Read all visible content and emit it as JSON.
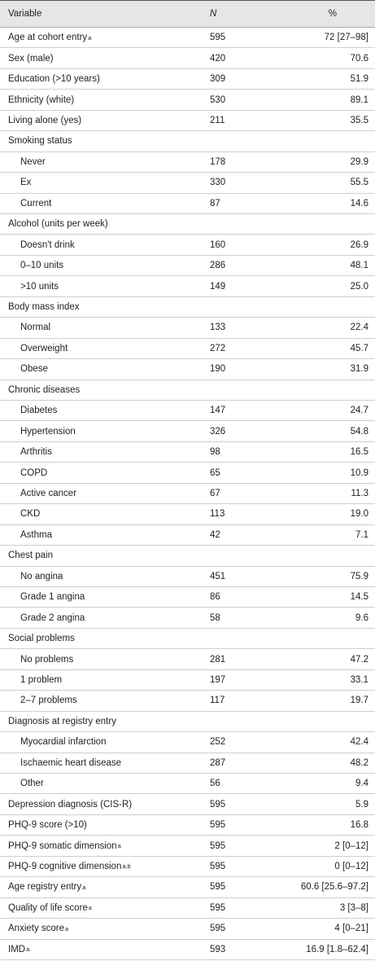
{
  "table": {
    "header": [
      "Variable",
      "N",
      "%"
    ],
    "rows": [
      {
        "label": "Age at cohort entry",
        "sup": "a",
        "n": 595,
        "pct": "72 [27–98]"
      },
      {
        "label": "Sex (male)",
        "n": 420,
        "pct": "70.6"
      },
      {
        "label": "Education (>10 years)",
        "n": 309,
        "pct": "51.9"
      },
      {
        "label": "Ethnicity (white)",
        "n": 530,
        "pct": "89.1"
      },
      {
        "label": "Living alone (yes)",
        "n": 211,
        "pct": "35.5"
      },
      {
        "label": "Smoking status",
        "items": [
          {
            "label": "Never",
            "n": 178,
            "pct": "29.9"
          },
          {
            "label": "Ex",
            "n": 330,
            "pct": "55.5"
          },
          {
            "label": "Current",
            "n": 87,
            "pct": "14.6"
          }
        ]
      },
      {
        "label": "Alcohol (units per week)",
        "items": [
          {
            "label": "Doesn't drink",
            "n": 160,
            "pct": "26.9"
          },
          {
            "label": "0–10 units",
            "n": 286,
            "pct": "48.1"
          },
          {
            "label": ">10 units",
            "n": 149,
            "pct": "25.0"
          }
        ]
      },
      {
        "label": "Body mass index",
        "items": [
          {
            "label": "Normal",
            "n": 133,
            "pct": "22.4"
          },
          {
            "label": "Overweight",
            "n": 272,
            "pct": "45.7"
          },
          {
            "label": "Obese",
            "n": 190,
            "pct": "31.9"
          }
        ]
      },
      {
        "label": "Chronic diseases",
        "items": [
          {
            "label": "Diabetes",
            "n": 147,
            "pct": "24.7"
          },
          {
            "label": "Hypertension",
            "n": 326,
            "pct": "54.8"
          },
          {
            "label": "Arthritis",
            "n": 98,
            "pct": "16.5"
          },
          {
            "label": "COPD",
            "n": 65,
            "pct": "10.9"
          },
          {
            "label": "Active cancer",
            "n": 67,
            "pct": "11.3"
          },
          {
            "label": "CKD",
            "n": 113,
            "pct": "19.0"
          },
          {
            "label": "Asthma",
            "n": 42,
            "pct": "7.1"
          }
        ]
      },
      {
        "label": "Chest pain",
        "items": [
          {
            "label": "No angina",
            "n": 451,
            "pct": "75.9"
          },
          {
            "label": "Grade 1 angina",
            "n": 86,
            "pct": "14.5"
          },
          {
            "label": "Grade 2 angina",
            "n": 58,
            "pct": "9.6"
          }
        ]
      },
      {
        "label": "Social problems",
        "items": [
          {
            "label": "No problems",
            "n": 281,
            "pct": "47.2"
          },
          {
            "label": "1 problem",
            "n": 197,
            "pct": "33.1"
          },
          {
            "label": "2–7 problems",
            "n": 117,
            "pct": "19.7"
          }
        ]
      },
      {
        "label": "Diagnosis at registry entry",
        "items": [
          {
            "label": "Myocardial infarction",
            "n": 252,
            "pct": "42.4"
          },
          {
            "label": "Ischaemic heart disease",
            "n": 287,
            "pct": "48.2"
          },
          {
            "label": "Other",
            "n": 56,
            "pct": "9.4"
          }
        ]
      },
      {
        "label": "Depression diagnosis (CIS-R)",
        "n": 595,
        "pct": "5.9"
      },
      {
        "label": "PHQ-9 score (>10)",
        "n": 595,
        "pct": "16.8"
      },
      {
        "label": "PHQ-9 somatic dimension",
        "sup": "a",
        "n": 595,
        "pct": "2 [0–12]"
      },
      {
        "label": "PHQ-9 cognitive dimension",
        "sup": "a,b",
        "n": 595,
        "pct": "0 [0–12]"
      },
      {
        "label": "Age registry entry",
        "sup": "a",
        "n": 595,
        "pct": "60.6 [25.6–97.2]"
      },
      {
        "label": "Quality of life score",
        "sup": "a",
        "n": 595,
        "pct": "3 [3–8]"
      },
      {
        "label": "Anxiety score",
        "sup": "a",
        "n": 595,
        "pct": "4 [0–21]"
      },
      {
        "label": "IMD",
        "sup": "a",
        "n": 593,
        "pct": "16.9 [1.8–62.4]"
      }
    ]
  }
}
